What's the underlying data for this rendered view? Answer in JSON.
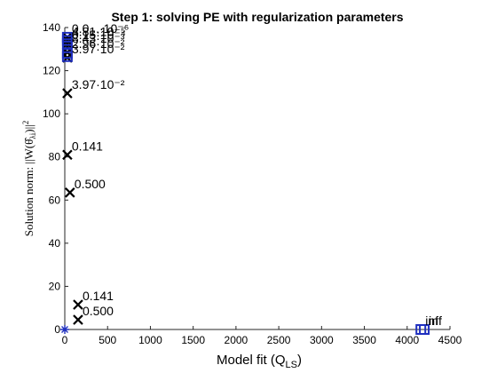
{
  "chart_data": {
    "type": "scatter",
    "title": "Step 1: solving PE with regularization parameters",
    "xlabel": "Model fit (Q",
    "xlabel_sub": "LS",
    "xlabel_end": ")",
    "ylabel": "Solution norm: ||W(θ̂",
    "ylabel_sub": "λi",
    "ylabel_end": ")||",
    "ylabel_sup": "2",
    "xlim": [
      0,
      4500
    ],
    "ylim": [
      0,
      140
    ],
    "xticks": [
      "0",
      "500",
      "1000",
      "1500",
      "2000",
      "2500",
      "3000",
      "3500",
      "4000",
      "4500"
    ],
    "yticks": [
      "0",
      "20",
      "40",
      "60",
      "80",
      "100",
      "120",
      "140"
    ],
    "series": [
      {
        "marker": "x",
        "color": "#000000",
        "points": [
          {
            "x": 30,
            "y": 135.5,
            "label": "0.0...·10⁻⁶"
          },
          {
            "x": 30,
            "y": 134,
            "label": "4.81·10⁻⁵"
          },
          {
            "x": 30,
            "y": 132.5,
            "label": "0.15·10⁻⁴"
          },
          {
            "x": 30,
            "y": 131,
            "label": "8.43·10⁻³"
          },
          {
            "x": 30,
            "y": 128.5,
            "label": "2.96·10⁻²"
          },
          {
            "x": 30,
            "y": 126,
            "label": "3.97·10⁻²"
          },
          {
            "x": 30,
            "y": 109.5,
            "label": "3.97·10⁻²"
          },
          {
            "x": 30,
            "y": 81,
            "label": "0.141"
          },
          {
            "x": 60,
            "y": 63.5,
            "label": "0.500"
          },
          {
            "x": 155,
            "y": 11.5,
            "label": "0.141"
          },
          {
            "x": 155,
            "y": 4.5,
            "label": "0.500"
          }
        ]
      },
      {
        "marker": "square",
        "color": "#1f2fbf",
        "points": [
          {
            "x": 30,
            "y": 135.5
          },
          {
            "x": 30,
            "y": 134
          },
          {
            "x": 30,
            "y": 132.5
          },
          {
            "x": 30,
            "y": 128
          },
          {
            "x": 30,
            "y": 126.5
          },
          {
            "x": 4160,
            "y": 0,
            "label": "inf"
          },
          {
            "x": 4200,
            "y": 0,
            "label": "inf"
          }
        ]
      },
      {
        "marker": "asterisk",
        "color": "#1f2fbf",
        "points": [
          {
            "x": 0,
            "y": 0
          }
        ]
      }
    ]
  }
}
